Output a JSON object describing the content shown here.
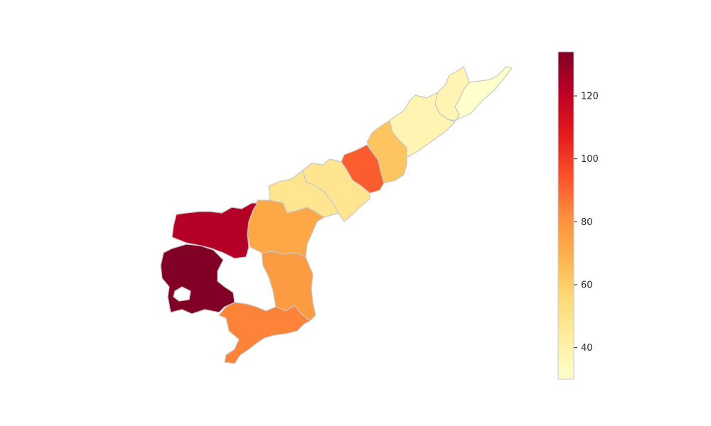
{
  "map": {
    "colormap": "YlOrRd",
    "border_color": "#c8c8c8",
    "regions": [
      {
        "id": "srikakulam",
        "value": 30
      },
      {
        "id": "vizianagaram",
        "value": 38
      },
      {
        "id": "visakhapatnam",
        "value": 38
      },
      {
        "id": "east-godavari",
        "value": 63
      },
      {
        "id": "west-godavari",
        "value": 92
      },
      {
        "id": "krishna",
        "value": 48
      },
      {
        "id": "guntur",
        "value": 48
      },
      {
        "id": "prakasam",
        "value": 73
      },
      {
        "id": "nellore",
        "value": 77
      },
      {
        "id": "chittoor",
        "value": 84
      },
      {
        "id": "kurnool",
        "value": 123
      },
      {
        "id": "anantapur",
        "value": 134
      }
    ]
  },
  "colorbar": {
    "vmin": 30,
    "vmax": 134,
    "ticks": [
      {
        "value": 40,
        "label": "40"
      },
      {
        "value": 60,
        "label": "60"
      },
      {
        "value": 80,
        "label": "80"
      },
      {
        "value": 100,
        "label": "100"
      },
      {
        "value": 120,
        "label": "120"
      }
    ],
    "stops": [
      "#ffffcc",
      "#ffeda0",
      "#fed976",
      "#feb24c",
      "#fd8d3c",
      "#fc4e2a",
      "#e31a1c",
      "#bd0026",
      "#800026"
    ]
  }
}
